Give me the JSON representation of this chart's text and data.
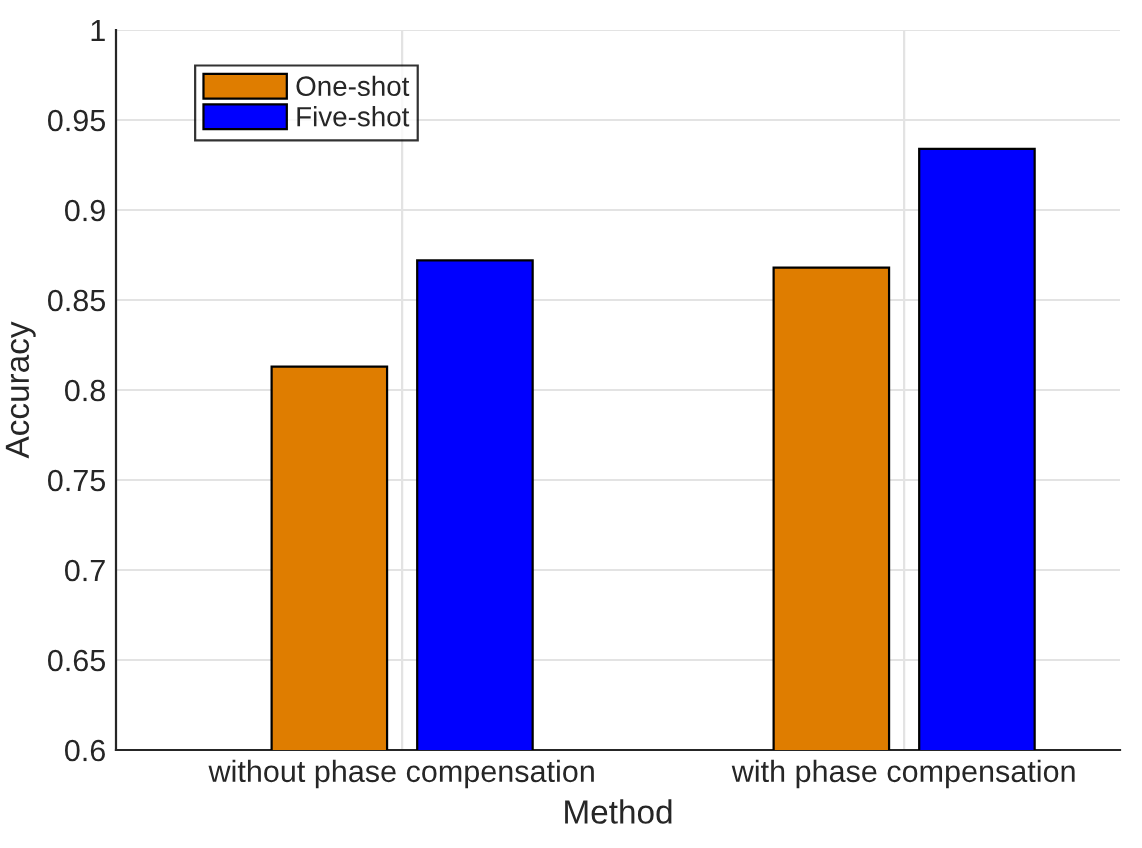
{
  "chart_data": {
    "type": "bar",
    "xlabel": "Method",
    "ylabel": "Accuracy",
    "categories": [
      "without phase compensation",
      "with phase compensation"
    ],
    "series": [
      {
        "name": "One-shot",
        "color": "#df7d00",
        "values": [
          0.813,
          0.868
        ]
      },
      {
        "name": "Five-shot",
        "color": "#0000ff",
        "values": [
          0.872,
          0.934
        ]
      }
    ],
    "ylim": [
      0.6,
      1
    ],
    "yticks": [
      0.6,
      0.65,
      0.7,
      0.75,
      0.8,
      0.85,
      0.9,
      0.95,
      1
    ],
    "grid": true,
    "legend": "top left"
  }
}
